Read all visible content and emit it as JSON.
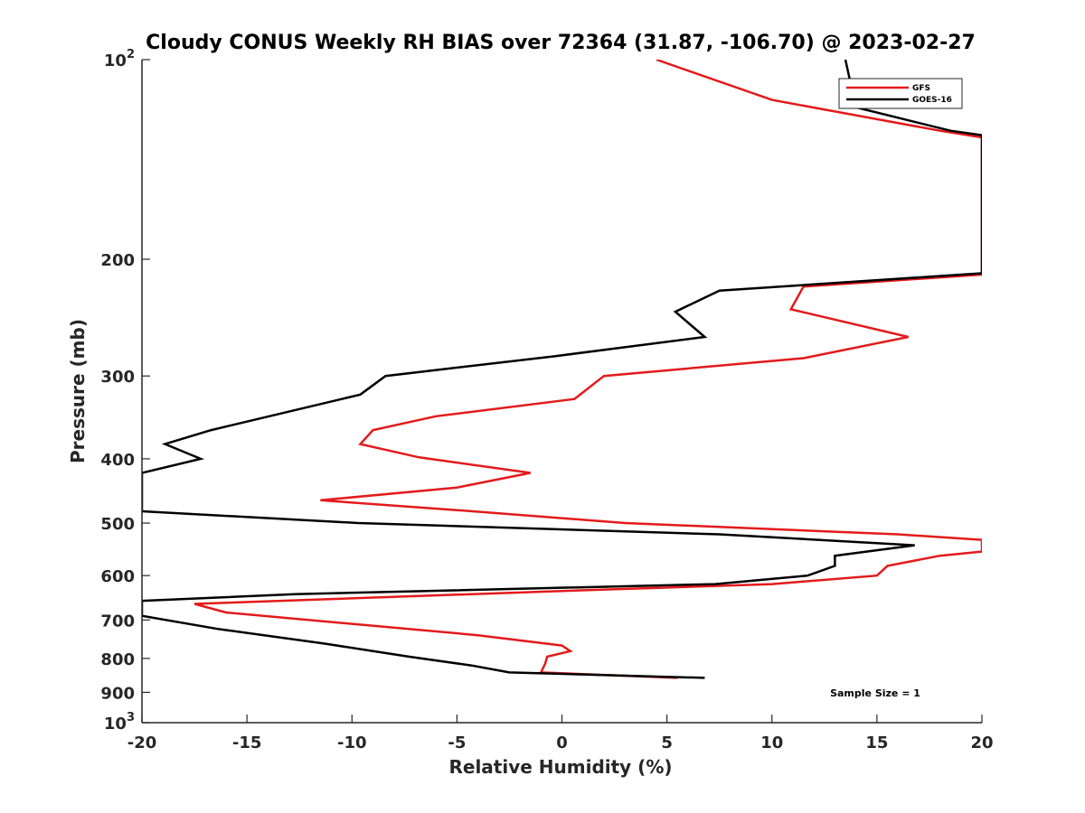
{
  "chart_data": {
    "type": "line",
    "title": "Cloudy CONUS Weekly RH BIAS over 72364 (31.87, -106.70) @ 2023-02-27",
    "xlabel": "Relative Humidity (%)",
    "ylabel": "Pressure (mb)",
    "xlim": [
      -20,
      20
    ],
    "ylim": [
      100,
      1000
    ],
    "y_scale": "log",
    "y_reversed": true,
    "x_ticks": [
      -20,
      -15,
      -10,
      -5,
      0,
      5,
      10,
      15,
      20
    ],
    "x_tick_labels": [
      "-20",
      "-15",
      "-10",
      "-5",
      "0",
      "5",
      "10",
      "15",
      "20"
    ],
    "y_ticks": [
      100,
      200,
      300,
      400,
      500,
      600,
      700,
      800,
      900,
      1000
    ],
    "y_tick_labels": [
      {
        "base": "10",
        "exp": "2"
      },
      {
        "base": "200",
        "exp": ""
      },
      {
        "base": "300",
        "exp": ""
      },
      {
        "base": "400",
        "exp": ""
      },
      {
        "base": "500",
        "exp": ""
      },
      {
        "base": "600",
        "exp": ""
      },
      {
        "base": "700",
        "exp": ""
      },
      {
        "base": "800",
        "exp": ""
      },
      {
        "base": "900",
        "exp": ""
      },
      {
        "base": "10",
        "exp": "3"
      }
    ],
    "grid": false,
    "legend_position": "top-right",
    "annotation": "Sample Size = 1",
    "series": [
      {
        "name": "GFS",
        "color": "#e31a1c",
        "points": [
          [
            4.5,
            100
          ],
          [
            10,
            115
          ],
          [
            18,
            128
          ],
          [
            20,
            131
          ],
          [
            20,
            211
          ],
          [
            11.5,
            220
          ],
          [
            10.9,
            238
          ],
          [
            16.5,
            262
          ],
          [
            11.5,
            282
          ],
          [
            2.0,
            300
          ],
          [
            0.6,
            325
          ],
          [
            -6,
            345
          ],
          [
            -9,
            362
          ],
          [
            -9.6,
            380
          ],
          [
            -6.8,
            398
          ],
          [
            -1.5,
            420
          ],
          [
            -5,
            442
          ],
          [
            -11.5,
            462
          ],
          [
            -5,
            478
          ],
          [
            3,
            500
          ],
          [
            16,
            520
          ],
          [
            20,
            530
          ],
          [
            20,
            552
          ],
          [
            18,
            560
          ],
          [
            15.5,
            580
          ],
          [
            15.0,
            600
          ],
          [
            10,
            618
          ],
          [
            0,
            633
          ],
          [
            -17.5,
            662
          ],
          [
            -16,
            682
          ],
          [
            -4,
            738
          ],
          [
            0,
            765
          ],
          [
            0.4,
            780
          ],
          [
            -0.7,
            795
          ],
          [
            -0.8,
            815
          ],
          [
            -1,
            840
          ],
          [
            5.5,
            856
          ]
        ]
      },
      {
        "name": "GOES-16",
        "color": "#000000",
        "points": [
          [
            13.5,
            100
          ],
          [
            14,
            118
          ],
          [
            18.5,
            128
          ],
          [
            20,
            130
          ],
          [
            20,
            210
          ],
          [
            7.5,
            223
          ],
          [
            5.4,
            240
          ],
          [
            6.8,
            262
          ],
          [
            -0.3,
            280
          ],
          [
            -8.4,
            300
          ],
          [
            -9.6,
            320
          ],
          [
            -16.7,
            362
          ],
          [
            -18.9,
            380
          ],
          [
            -17.2,
            400
          ],
          [
            -20,
            420
          ],
          [
            -20,
            480
          ],
          [
            -9.7,
            500
          ],
          [
            7.5,
            520
          ],
          [
            16.8,
            540
          ],
          [
            13,
            560
          ],
          [
            13,
            580
          ],
          [
            11.7,
            600
          ],
          [
            7.3,
            618
          ],
          [
            -12.7,
            640
          ],
          [
            -20,
            655
          ],
          [
            -20,
            690
          ],
          [
            -16.4,
            722
          ],
          [
            -11.3,
            760
          ],
          [
            -7.3,
            795
          ],
          [
            -4.3,
            820
          ],
          [
            -2.5,
            840
          ],
          [
            6.8,
            856
          ]
        ]
      }
    ]
  }
}
